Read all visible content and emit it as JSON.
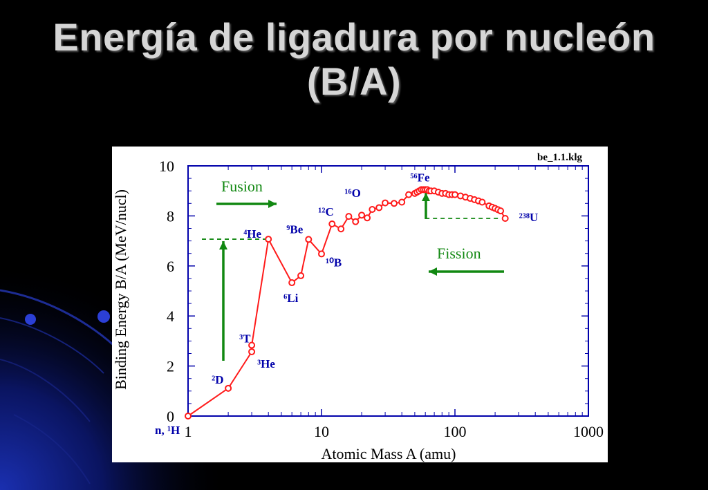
{
  "slide": {
    "title_line1": "Energía de ligadura por nucleón",
    "title_line2": "(B/A)"
  },
  "colors": {
    "background": "#000000",
    "title": "#d6d6d6",
    "curve": "#ff1a1a",
    "axis": "#0000aa",
    "arrow": "#118811"
  },
  "chart_data": {
    "type": "line",
    "figure_id": "be_1.1.klg",
    "xlabel": "Atomic Mass A (amu)",
    "ylabel": "Binding Energy B/A (MeV/nucl)",
    "xscale": "log",
    "xlim": [
      1,
      1000
    ],
    "ylim": [
      0,
      10
    ],
    "xticks": [
      "1",
      "10",
      "100",
      "1000"
    ],
    "yticks": [
      "0",
      "2",
      "4",
      "6",
      "8",
      "10"
    ],
    "series": [
      {
        "x": [
          1,
          2,
          3,
          3,
          4,
          6,
          7,
          8,
          10,
          12,
          14,
          16,
          18,
          20,
          22,
          24,
          27,
          30,
          35,
          40,
          45,
          50,
          52,
          54,
          56,
          58,
          60,
          62,
          64,
          66,
          70,
          75,
          80,
          85,
          90,
          95,
          100,
          110,
          120,
          130,
          140,
          150,
          160,
          180,
          190,
          200,
          210,
          220,
          238
        ],
        "y": [
          0,
          1.11,
          2.57,
          2.83,
          7.07,
          5.33,
          5.61,
          7.06,
          6.48,
          7.68,
          7.48,
          7.98,
          7.77,
          8.03,
          7.92,
          8.26,
          8.33,
          8.52,
          8.5,
          8.55,
          8.85,
          8.9,
          8.95,
          9.0,
          9.05,
          9.05,
          9.05,
          9.05,
          9.0,
          9.0,
          9.0,
          8.95,
          8.9,
          8.9,
          8.85,
          8.85,
          8.85,
          8.8,
          8.75,
          8.7,
          8.65,
          8.6,
          8.55,
          8.4,
          8.35,
          8.3,
          8.25,
          8.2,
          7.9
        ]
      }
    ],
    "labels": [
      {
        "text": "n, ¹H",
        "x": 1,
        "y": 0
      },
      {
        "text": "²D",
        "x": 2,
        "y": 1.11
      },
      {
        "text": "³T",
        "x": 3,
        "y": 2.83
      },
      {
        "text": "³He",
        "x": 3,
        "y": 2.57
      },
      {
        "text": "⁴He",
        "x": 4,
        "y": 7.07
      },
      {
        "text": "⁶Li",
        "x": 6,
        "y": 5.33
      },
      {
        "text": "⁹Be",
        "x": 8,
        "y": 7.06
      },
      {
        "text": "¹⁰B",
        "x": 10,
        "y": 6.48
      },
      {
        "text": "¹²C",
        "x": 12,
        "y": 7.68
      },
      {
        "text": "¹⁶O",
        "x": 16,
        "y": 7.98
      },
      {
        "text": "⁵⁶Fe",
        "x": 56,
        "y": 9.05
      },
      {
        "text": "²³⁸U",
        "x": 238,
        "y": 7.9
      }
    ],
    "annotations": [
      {
        "text": "Fusion",
        "arrow": "right"
      },
      {
        "text": "Fission",
        "arrow": "left"
      }
    ]
  }
}
